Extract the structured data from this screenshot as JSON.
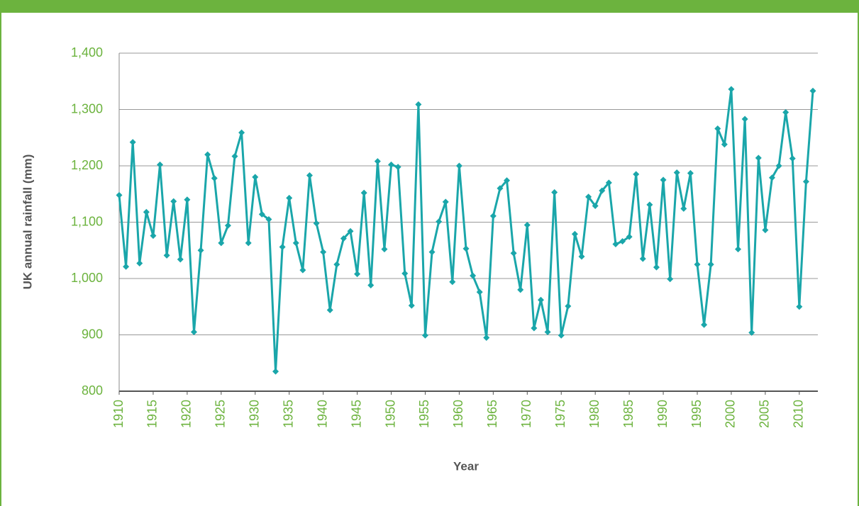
{
  "chart_data": {
    "type": "line",
    "y_label": "UK annual rainfall (mm)",
    "x_label": "Year",
    "x": [
      1910,
      1911,
      1912,
      1913,
      1914,
      1915,
      1916,
      1917,
      1918,
      1919,
      1920,
      1921,
      1922,
      1923,
      1924,
      1925,
      1926,
      1927,
      1928,
      1929,
      1930,
      1931,
      1932,
      1933,
      1934,
      1935,
      1936,
      1937,
      1938,
      1939,
      1940,
      1941,
      1942,
      1943,
      1944,
      1945,
      1946,
      1947,
      1948,
      1949,
      1950,
      1951,
      1952,
      1953,
      1954,
      1955,
      1956,
      1957,
      1958,
      1959,
      1960,
      1961,
      1962,
      1963,
      1964,
      1965,
      1966,
      1967,
      1968,
      1969,
      1970,
      1971,
      1972,
      1973,
      1974,
      1975,
      1976,
      1977,
      1978,
      1979,
      1980,
      1981,
      1982,
      1983,
      1984,
      1985,
      1986,
      1987,
      1988,
      1989,
      1990,
      1991,
      1992,
      1993,
      1994,
      1995,
      1996,
      1997,
      1998,
      1999,
      2000,
      2001,
      2002,
      2003,
      2004,
      2005,
      2006,
      2007,
      2008,
      2009,
      2010,
      2011,
      2012
    ],
    "series": [
      {
        "name": "UK annual rainfall",
        "color": "#1aa6aa",
        "values": [
          1148,
          1021,
          1242,
          1027,
          1118,
          1076,
          1202,
          1041,
          1137,
          1034,
          1140,
          905,
          1050,
          1220,
          1178,
          1063,
          1094,
          1217,
          1259,
          1063,
          1180,
          1114,
          1105,
          835,
          1056,
          1143,
          1063,
          1015,
          1183,
          1098,
          1047,
          944,
          1025,
          1071,
          1084,
          1008,
          1152,
          988,
          1208,
          1052,
          1202,
          1198,
          1009,
          952,
          1309,
          899,
          1047,
          1101,
          1136,
          994,
          1200,
          1053,
          1005,
          976,
          895,
          1111,
          1160,
          1174,
          1045,
          980,
          1095,
          912,
          962,
          905,
          1153,
          899,
          951,
          1079,
          1039,
          1145,
          1129,
          1156,
          1170,
          1061,
          1066,
          1074,
          1185,
          1035,
          1131,
          1020,
          1175,
          999,
          1188,
          1124,
          1187,
          1025,
          918,
          1025,
          1266,
          1238,
          1336,
          1052,
          1283,
          904,
          1214,
          1086,
          1179,
          1200,
          1295,
          1213,
          950,
          1172,
          1333
        ]
      }
    ],
    "xlim": [
      1910,
      2012
    ],
    "xticks": [
      1910,
      1915,
      1920,
      1925,
      1930,
      1935,
      1940,
      1945,
      1950,
      1955,
      1960,
      1965,
      1970,
      1975,
      1980,
      1985,
      1990,
      1995,
      2000,
      2005,
      2010
    ],
    "ylim": [
      800,
      1400
    ],
    "yticks": [
      800,
      {
        "value": 900,
        "label": "900"
      },
      {
        "value": 1000,
        "label": "1,000"
      },
      {
        "value": 1100,
        "label": "1,100"
      },
      {
        "value": 1200,
        "label": "1,200"
      },
      {
        "value": 1300,
        "label": "1,300"
      },
      {
        "value": 1400,
        "label": "1,400"
      }
    ],
    "grid": true
  }
}
